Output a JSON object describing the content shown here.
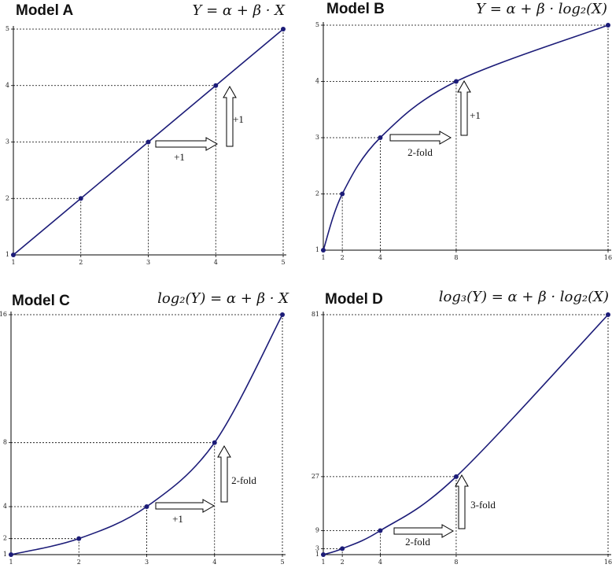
{
  "chart_data": [
    {
      "type": "line",
      "title": "Model A",
      "subtitle": "Y = α + β · X",
      "x": [
        1,
        2,
        3,
        4,
        5
      ],
      "values": [
        1,
        2,
        3,
        4,
        5
      ],
      "color": "#1c1c78",
      "xlim": [
        1,
        5
      ],
      "ylim": [
        1,
        5
      ],
      "xticks": [
        1,
        2,
        3,
        4,
        5
      ],
      "yticks": [
        1,
        2,
        3,
        4,
        5
      ],
      "annotations": [
        "+1",
        "+1"
      ]
    },
    {
      "type": "line",
      "title": "Model B",
      "subtitle": "Y = α + β · log₂(X)",
      "x": [
        1,
        2,
        4,
        8,
        16
      ],
      "values": [
        1,
        2,
        3,
        4,
        5
      ],
      "color": "#1c1c78",
      "xlim": [
        1,
        16
      ],
      "ylim": [
        1,
        5
      ],
      "xticks": [
        1,
        2,
        4,
        8,
        16
      ],
      "yticks": [
        1,
        2,
        3,
        4,
        5
      ],
      "annotations": [
        "2-fold",
        "+1"
      ]
    },
    {
      "type": "line",
      "title": "Model C",
      "subtitle": "log₂(Y) = α + β · X",
      "x": [
        1,
        2,
        3,
        4,
        5
      ],
      "values": [
        1,
        2,
        4,
        8,
        16
      ],
      "color": "#1c1c78",
      "xlim": [
        1,
        5
      ],
      "ylim": [
        1,
        16
      ],
      "xticks": [
        1,
        2,
        3,
        4,
        5
      ],
      "yticks": [
        1,
        2,
        4,
        8,
        16
      ],
      "annotations": [
        "+1",
        "2-fold"
      ]
    },
    {
      "type": "line",
      "title": "Model D",
      "subtitle": "log₃(Y) = α + β · log₂(X)",
      "x": [
        1,
        2,
        4,
        8,
        16
      ],
      "values": [
        1,
        3,
        9,
        27,
        81
      ],
      "color": "#1c1c78",
      "xlim": [
        1,
        16
      ],
      "ylim": [
        1,
        81
      ],
      "xticks": [
        1,
        2,
        4,
        8,
        16
      ],
      "yticks": [
        1,
        3,
        9,
        27,
        81
      ],
      "annotations": [
        "2-fold",
        "3-fold"
      ]
    }
  ]
}
